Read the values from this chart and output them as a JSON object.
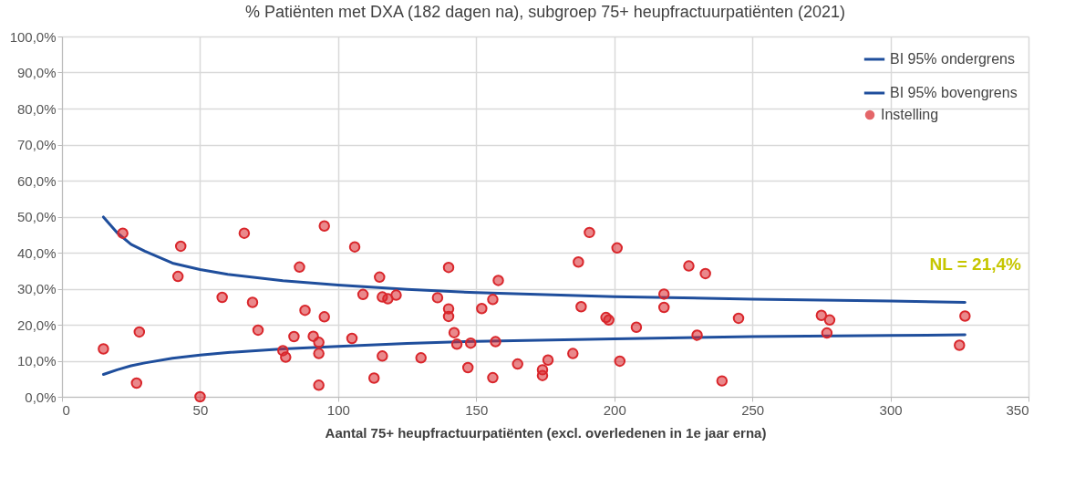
{
  "chart_data": {
    "type": "scatter",
    "title": "% Patiënten met DXA (182 dagen na), subgroep 75+ heupfractuurpatiënten (2021)",
    "xlabel": "Aantal 75+ heupfractuurpatiënten (excl. overledenen in 1e jaar erna)",
    "xlim": [
      0,
      350
    ],
    "xticks": [
      0,
      50,
      100,
      150,
      200,
      250,
      300,
      350
    ],
    "ylim": [
      0,
      100
    ],
    "yticks": [
      {
        "value": 0,
        "label": "0,0%"
      },
      {
        "value": 10,
        "label": "10,0%"
      },
      {
        "value": 20,
        "label": "20,0%"
      },
      {
        "value": 30,
        "label": "30,0%"
      },
      {
        "value": 40,
        "label": "40,0%"
      },
      {
        "value": 50,
        "label": "50,0%"
      },
      {
        "value": 60,
        "label": "60,0%"
      },
      {
        "value": 70,
        "label": "70,0%"
      },
      {
        "value": 80,
        "label": "80,0%"
      },
      {
        "value": 90,
        "label": "90,0%"
      },
      {
        "value": 100,
        "label": "100,0%"
      }
    ],
    "grid": true,
    "legend": "top right",
    "line_style": "solid",
    "annotations": [
      "NL = 21,4%"
    ],
    "series": [
      {
        "name": "BI 95% ondergrens",
        "type": "line",
        "color": "#1f4e9c",
        "x": [
          15,
          20,
          25,
          30,
          40,
          50,
          60,
          80,
          100,
          125,
          150,
          200,
          250,
          300,
          327
        ],
        "values": [
          6.2,
          7.5,
          8.6,
          9.4,
          10.7,
          11.6,
          12.3,
          13.3,
          14.0,
          14.8,
          15.4,
          16.1,
          16.7,
          17.0,
          17.2
        ]
      },
      {
        "name": "BI 95% bovengrens",
        "type": "line",
        "color": "#1f4e9c",
        "x": [
          15,
          20,
          25,
          30,
          40,
          50,
          60,
          80,
          100,
          125,
          150,
          200,
          250,
          300,
          327
        ],
        "values": [
          49.9,
          45.5,
          42.3,
          40.4,
          37.1,
          35.3,
          34.0,
          32.2,
          31.0,
          29.8,
          28.9,
          27.8,
          27.1,
          26.6,
          26.2
        ]
      },
      {
        "name": "Instelling",
        "type": "scatter",
        "marker": "circle",
        "color": "#d9262b",
        "x": [
          15,
          22,
          27,
          28,
          42,
          43,
          50,
          58,
          66,
          69,
          71,
          80,
          81,
          84,
          86,
          88,
          91,
          93,
          93,
          93,
          95,
          95,
          105,
          106,
          109,
          113,
          115,
          116,
          116,
          118,
          121,
          130,
          136,
          140,
          140,
          140,
          142,
          143,
          147,
          148,
          152,
          156,
          156,
          157,
          158,
          165,
          174,
          174,
          176,
          185,
          187,
          188,
          191,
          197,
          198,
          201,
          202,
          208,
          218,
          218,
          227,
          230,
          233,
          239,
          245,
          275,
          277,
          278,
          325,
          327
        ],
        "values": [
          13.3,
          45.4,
          3.8,
          18.0,
          33.4,
          41.8,
          0,
          27.6,
          45.4,
          26.2,
          18.5,
          12.8,
          11.0,
          16.7,
          36.0,
          24.0,
          16.8,
          12.0,
          15.1,
          3.2,
          22.2,
          47.4,
          16.2,
          41.6,
          28.4,
          5.2,
          33.2,
          27.7,
          11.3,
          27.2,
          28.2,
          10.8,
          27.5,
          35.9,
          24.4,
          22.3,
          17.8,
          14.6,
          8.1,
          14.9,
          24.5,
          5.3,
          27.0,
          15.3,
          32.3,
          9.1,
          7.5,
          5.9,
          10.2,
          12.0,
          37.4,
          25.0,
          45.6,
          22.0,
          21.3,
          41.3,
          9.9,
          19.3,
          28.5,
          24.8,
          36.3,
          17.1,
          34.2,
          4.4,
          21.8,
          22.6,
          17.7,
          21.3,
          14.3,
          22.4
        ]
      }
    ]
  }
}
